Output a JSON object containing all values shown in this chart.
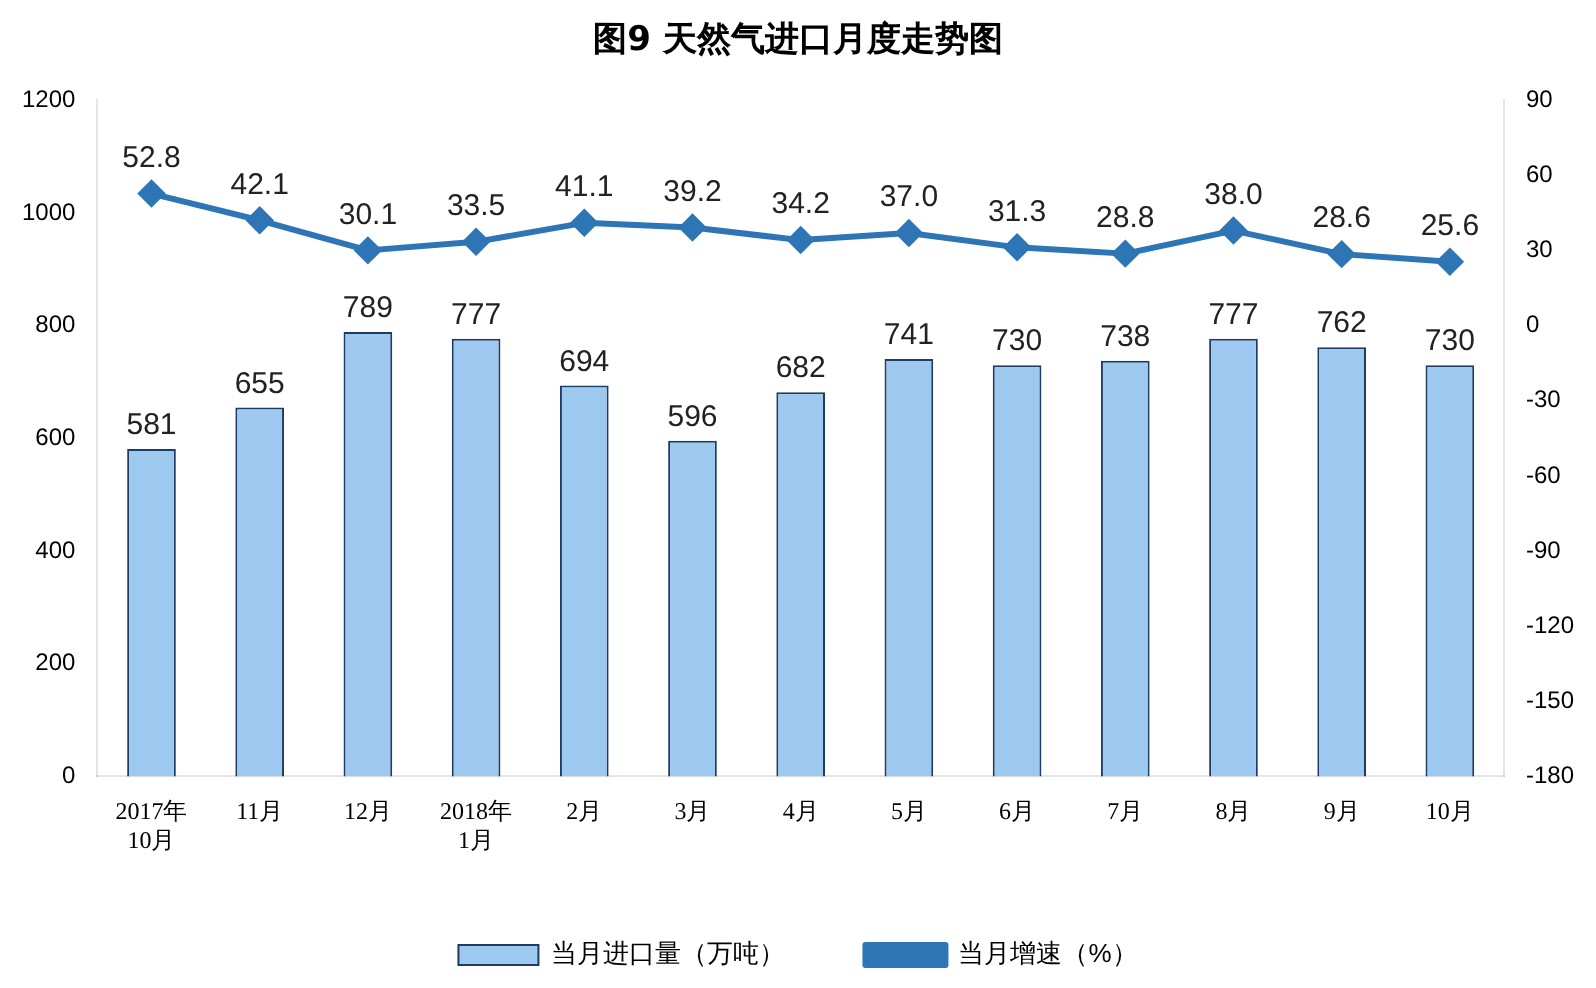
{
  "chart_data": {
    "type": "bar",
    "title": "图9  天然气进口月度走势图",
    "categories": [
      "2017年\n10月",
      "11月",
      "12月",
      "2018年\n1月",
      "2月",
      "3月",
      "4月",
      "5月",
      "6月",
      "7月",
      "8月",
      "9月",
      "10月"
    ],
    "series": [
      {
        "name": "当月进口量（万吨）",
        "color": "#9dc8ef",
        "values": [
          581,
          655,
          789,
          777,
          694,
          596,
          682,
          741,
          730,
          738,
          777,
          762,
          730
        ]
      },
      {
        "name": "当月增速（%）",
        "type": "line",
        "axis": "y2",
        "color": "#2e75b6",
        "values": [
          52.8,
          42.1,
          30.1,
          33.5,
          41.1,
          39.2,
          34.2,
          37,
          31.3,
          28.8,
          38,
          28.6,
          25.6
        ],
        "value_labels": [
          "52.8",
          "42.1",
          "30.1",
          "33.5",
          "41.1",
          "39.2",
          "34.2",
          "37.0",
          "31.3",
          "28.8",
          "38.0",
          "28.6",
          "25.6"
        ]
      }
    ],
    "ylim": [
      0,
      1200
    ],
    "yticks": [
      0,
      200,
      400,
      600,
      800,
      1000,
      1200
    ],
    "y2lim": [
      -180,
      90
    ],
    "y2ticks": [
      -180,
      -150,
      -120,
      -90,
      -60,
      -30,
      0,
      30,
      60,
      90
    ],
    "data_labels": true,
    "legend": "bottom",
    "grid": false,
    "marker": "diamond",
    "line_style": "solid"
  }
}
